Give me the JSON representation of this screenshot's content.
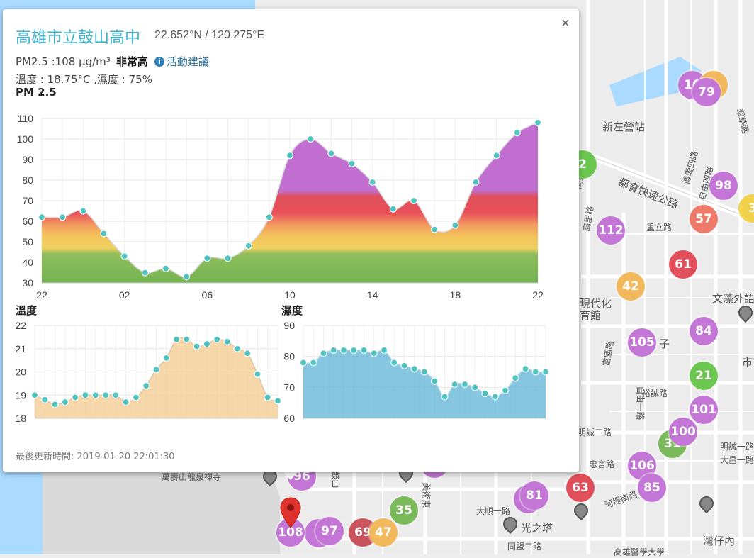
{
  "popup": {
    "station_name": "高雄市立鼓山高中",
    "coordinates": "22.652°N / 120.275°E",
    "pm25_reading": "PM2.5 :108 μg/m³",
    "pm25_level": "非常高",
    "activity_advice_link": "活動建議",
    "temp_humidity": "溫度 : 18.75°C ,濕度 : 75%",
    "close_label": "×",
    "last_updated": "最後更新時間: 2019-01-20 22:01:30",
    "info_icon": "info-icon"
  },
  "chart_data": [
    {
      "type": "area",
      "title": "PM 2.5",
      "ylim": [
        30,
        110
      ],
      "yticks": [
        30,
        40,
        50,
        60,
        70,
        80,
        90,
        100,
        110
      ],
      "xtick_labels": [
        "22",
        "02",
        "06",
        "10",
        "14",
        "18",
        "22"
      ],
      "x_label_hours": [
        0,
        4,
        8,
        12,
        16,
        20,
        24
      ],
      "series": [
        {
          "values": [
            62,
            62,
            65,
            54,
            43,
            35,
            37,
            33,
            42,
            42,
            48,
            62,
            92,
            100,
            93,
            88,
            79,
            66,
            70,
            56,
            58,
            79,
            92,
            103,
            108
          ]
        }
      ],
      "fill": "pm25-gradient"
    },
    {
      "type": "area",
      "title": "溫度",
      "ylim": [
        18,
        22
      ],
      "yticks": [
        18,
        19,
        20,
        21,
        22
      ],
      "series": [
        {
          "values": [
            19.0,
            18.8,
            18.6,
            18.7,
            18.9,
            19.0,
            19.0,
            19.0,
            19.0,
            18.7,
            18.9,
            19.4,
            20.1,
            20.6,
            21.4,
            21.4,
            21.1,
            21.2,
            21.4,
            21.3,
            21.0,
            20.8,
            19.9,
            18.9,
            18.75
          ]
        }
      ],
      "fill_color": "#f3c98e"
    },
    {
      "type": "area",
      "title": "濕度",
      "ylim": [
        60,
        90
      ],
      "yticks": [
        60,
        70,
        80,
        90
      ],
      "series": [
        {
          "values": [
            78,
            78,
            81,
            82,
            82,
            82,
            82,
            81,
            82,
            78,
            77,
            76,
            75,
            72,
            67,
            71,
            71,
            70,
            68,
            67,
            69,
            73,
            76,
            75,
            75
          ]
        }
      ],
      "fill_color": "#5fb3d6"
    }
  ],
  "map": {
    "labels": [
      "新左營站",
      "文藻外語",
      "現代化",
      "育館",
      "光之塔",
      "灣仔內",
      "萬壽山龍泉禪寺",
      "子",
      "市"
    ],
    "road_labels": [
      "翠華路",
      "博愛四路",
      "自由四路",
      "都會快速公路",
      "重立路",
      "富國路",
      "裕誠路",
      "自由一路",
      "明誠二路",
      "忠言路",
      "同盟二路",
      "大順一路",
      "河堤南路",
      "大昌一路",
      "明誠一路",
      "美術東",
      "高鐵路",
      "高雄醫學大學",
      "高里路",
      "鼓山"
    ],
    "markers": [
      {
        "value": "79",
        "color": "#c476d6"
      },
      {
        "value": "98",
        "color": "#c476d6"
      },
      {
        "value": "57",
        "color": "#ee7a6a"
      },
      {
        "value": "112",
        "color": "#c476d6"
      },
      {
        "value": "61",
        "color": "#e04f5a"
      },
      {
        "value": "42",
        "color": "#f2b95c"
      },
      {
        "value": "105",
        "color": "#c476d6"
      },
      {
        "value": "84",
        "color": "#c476d6"
      },
      {
        "value": "21",
        "color": "#6bc74f"
      },
      {
        "value": "101",
        "color": "#c476d6"
      },
      {
        "value": "100",
        "color": "#c476d6"
      },
      {
        "value": "106",
        "color": "#c476d6"
      },
      {
        "value": "85",
        "color": "#c476d6"
      },
      {
        "value": "63",
        "color": "#e04f5a"
      },
      {
        "value": "81",
        "color": "#c476d6"
      },
      {
        "value": "35",
        "color": "#7bba5a"
      },
      {
        "value": "47",
        "color": "#f2b95c"
      },
      {
        "value": "69",
        "color": "#c9545e"
      },
      {
        "value": "97",
        "color": "#c476d6"
      },
      {
        "value": "108",
        "color": "#c476d6"
      },
      {
        "value": "96",
        "color": "#c476d6"
      },
      {
        "value": "10",
        "color": "#c476d6"
      },
      {
        "value": "2",
        "color": "#6bc74f"
      },
      {
        "value": "3",
        "color": "#f2d24c"
      },
      {
        "value": "31",
        "color": "#7bba5a"
      }
    ]
  }
}
